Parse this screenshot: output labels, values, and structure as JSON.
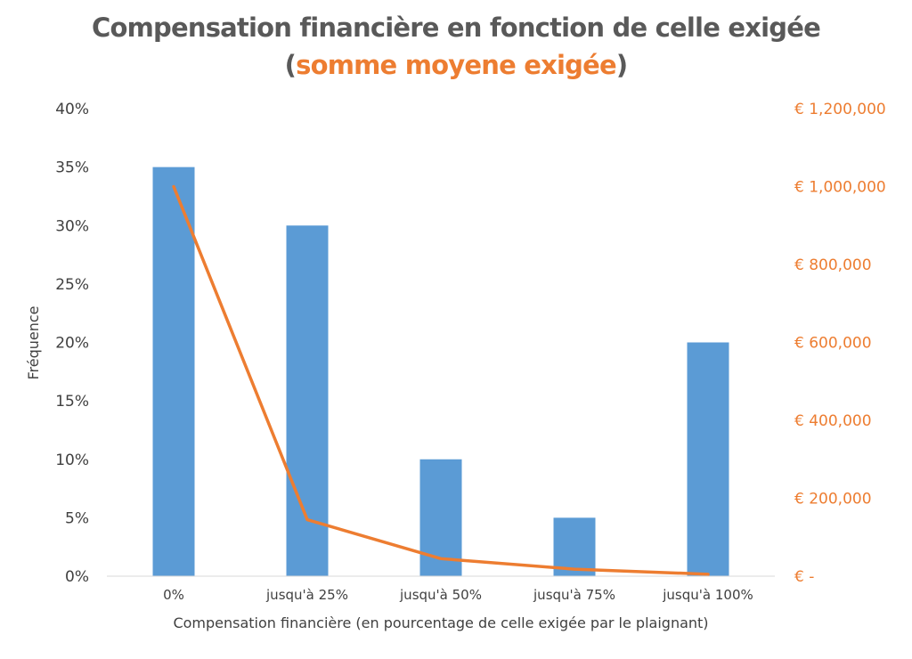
{
  "chart_data": {
    "type": "bar",
    "title": "Compensation financière en fonction de celle exigée",
    "subtitle": {
      "open": "(",
      "highlight": "somme moyene exigée",
      "close": ")"
    },
    "xlabel": "Compensation financière (en pourcentage de celle exigée par le plaignant)",
    "ylabel": "Fréquence",
    "categories": [
      "0%",
      "jusqu'à 25%",
      "jusqu'à 50%",
      "jusqu'à 75%",
      "jusqu'à 100%"
    ],
    "series": [
      {
        "type": "bar",
        "axis": "left",
        "color": "#5B9BD5",
        "values": [
          0.35,
          0.3,
          0.1,
          0.05,
          0.2
        ]
      },
      {
        "type": "line",
        "axis": "right",
        "color": "#ED7D31",
        "values": [
          1000000,
          145000,
          45000,
          18000,
          5000
        ]
      }
    ],
    "ylim": [
      0,
      0.4
    ],
    "y2lim": [
      0,
      1200000
    ],
    "yticks": [
      {
        "value": 0,
        "label": "0%"
      },
      {
        "value": 0.05,
        "label": "5%"
      },
      {
        "value": 0.1,
        "label": "10%"
      },
      {
        "value": 0.15,
        "label": "15%"
      },
      {
        "value": 0.2,
        "label": "20%"
      },
      {
        "value": 0.25,
        "label": "25%"
      },
      {
        "value": 0.3,
        "label": "30%"
      },
      {
        "value": 0.35,
        "label": "35%"
      },
      {
        "value": 0.4,
        "label": "40%"
      }
    ],
    "y2ticks": [
      {
        "value": 0,
        "label": "€ -"
      },
      {
        "value": 200000,
        "label": "€ 200,000"
      },
      {
        "value": 400000,
        "label": "€ 400,000"
      },
      {
        "value": 600000,
        "label": "€ 600,000"
      },
      {
        "value": 800000,
        "label": "€ 800,000"
      },
      {
        "value": 1000000,
        "label": "€ 1,000,000"
      },
      {
        "value": 1200000,
        "label": "€ 1,200,000"
      }
    ],
    "grid": false,
    "legend": "none"
  }
}
